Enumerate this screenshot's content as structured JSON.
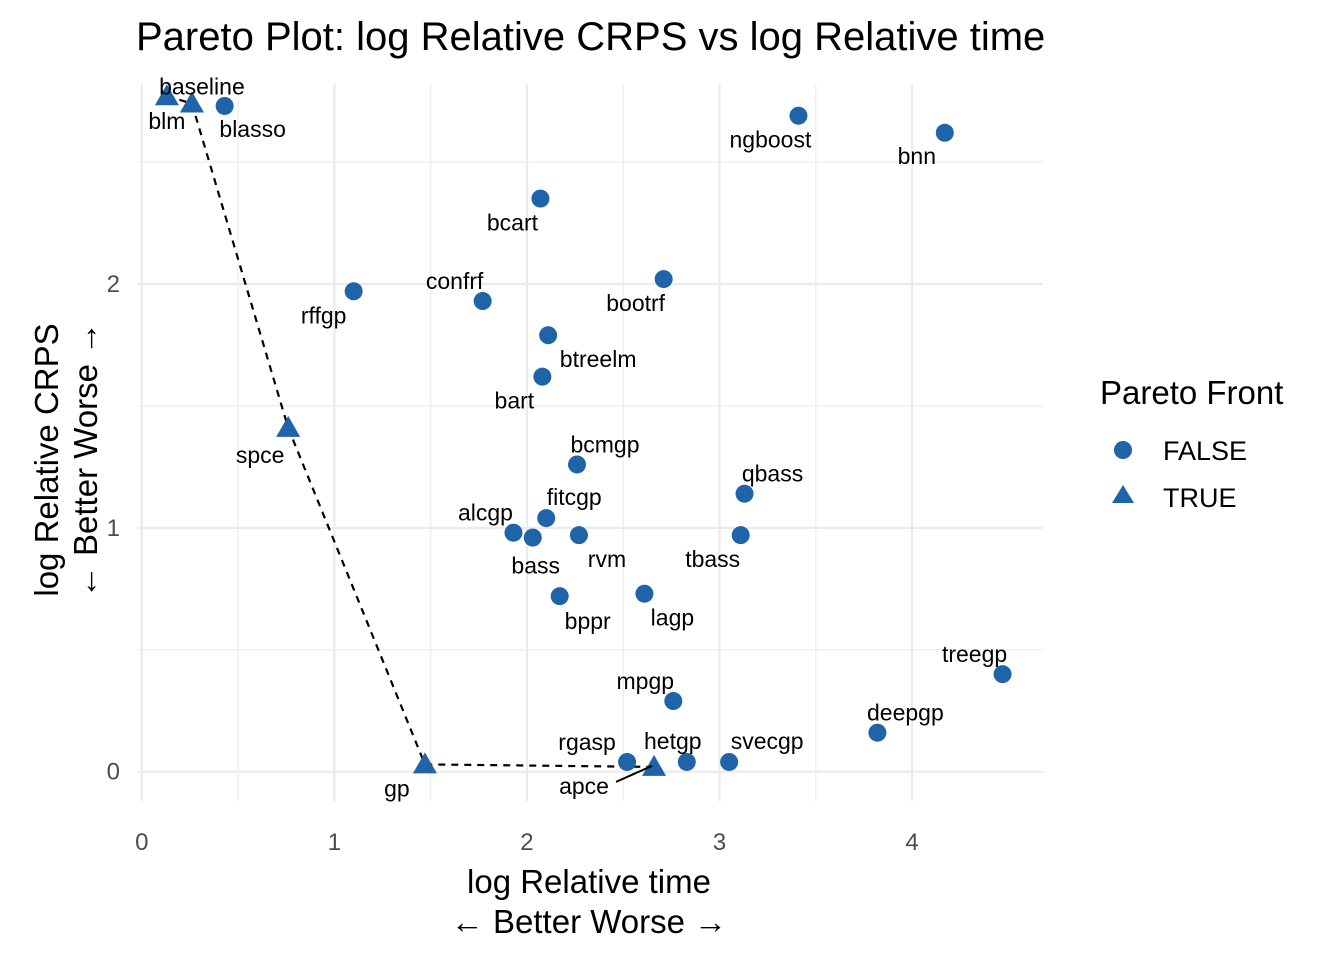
{
  "chart_data": {
    "type": "scatter",
    "title": "Pareto Plot: log Relative CRPS vs log Relative time",
    "xlabel": [
      "log Relative time",
      "← Better    Worse →"
    ],
    "ylabel": [
      "log Relative CRPS",
      "← Better    Worse →"
    ],
    "xlim": [
      -0.02,
      4.68
    ],
    "ylim": [
      -0.12,
      2.82
    ],
    "xticks": [
      0,
      1,
      2,
      3,
      4
    ],
    "yticks": [
      0,
      1,
      2
    ],
    "grid": true,
    "legend": {
      "title": "Pareto Front",
      "placement": "right",
      "entries": [
        {
          "label": "FALSE",
          "shape": "circle"
        },
        {
          "label": "TRUE",
          "shape": "triangle"
        }
      ]
    },
    "color": "#1f63a8",
    "points": [
      {
        "label": "blm",
        "x": 0.13,
        "y": 2.77,
        "pareto": true
      },
      {
        "label": "baseline",
        "x": 0.26,
        "y": 2.74,
        "pareto": true
      },
      {
        "label": "blasso",
        "x": 0.43,
        "y": 2.73,
        "pareto": false
      },
      {
        "label": "ngboost",
        "x": 3.41,
        "y": 2.69,
        "pareto": false
      },
      {
        "label": "bnn",
        "x": 4.17,
        "y": 2.62,
        "pareto": false
      },
      {
        "label": "bcart",
        "x": 2.07,
        "y": 2.35,
        "pareto": false
      },
      {
        "label": "bootrf",
        "x": 2.71,
        "y": 2.02,
        "pareto": false
      },
      {
        "label": "rffgp",
        "x": 1.1,
        "y": 1.97,
        "pareto": false
      },
      {
        "label": "confrf",
        "x": 1.77,
        "y": 1.93,
        "pareto": false
      },
      {
        "label": "btreelm",
        "x": 2.11,
        "y": 1.79,
        "pareto": false
      },
      {
        "label": "bart",
        "x": 2.08,
        "y": 1.62,
        "pareto": false
      },
      {
        "label": "spce",
        "x": 0.76,
        "y": 1.41,
        "pareto": true
      },
      {
        "label": "bcmgp",
        "x": 2.26,
        "y": 1.26,
        "pareto": false
      },
      {
        "label": "qbass",
        "x": 3.13,
        "y": 1.14,
        "pareto": false
      },
      {
        "label": "fitcgp",
        "x": 2.1,
        "y": 1.04,
        "pareto": false
      },
      {
        "label": "alcgp",
        "x": 1.93,
        "y": 0.98,
        "pareto": false
      },
      {
        "label": "bass",
        "x": 2.03,
        "y": 0.96,
        "pareto": false
      },
      {
        "label": "rvm",
        "x": 2.27,
        "y": 0.97,
        "pareto": false
      },
      {
        "label": "tbass",
        "x": 3.11,
        "y": 0.97,
        "pareto": false
      },
      {
        "label": "bppr",
        "x": 2.17,
        "y": 0.72,
        "pareto": false
      },
      {
        "label": "lagp",
        "x": 2.61,
        "y": 0.73,
        "pareto": false
      },
      {
        "label": "treegp",
        "x": 4.47,
        "y": 0.4,
        "pareto": false
      },
      {
        "label": "mpgp",
        "x": 2.76,
        "y": 0.29,
        "pareto": false
      },
      {
        "label": "deepgp",
        "x": 3.82,
        "y": 0.16,
        "pareto": false
      },
      {
        "label": "gp",
        "x": 1.47,
        "y": 0.03,
        "pareto": true
      },
      {
        "label": "rgasp",
        "x": 2.52,
        "y": 0.04,
        "pareto": false
      },
      {
        "label": "apce",
        "x": 2.66,
        "y": 0.02,
        "pareto": true
      },
      {
        "label": "hetgp",
        "x": 2.83,
        "y": 0.04,
        "pareto": false
      },
      {
        "label": "svecgp",
        "x": 3.05,
        "y": 0.04,
        "pareto": false
      }
    ],
    "front_path": [
      "blm",
      "baseline",
      "spce",
      "gp",
      "apce"
    ]
  }
}
